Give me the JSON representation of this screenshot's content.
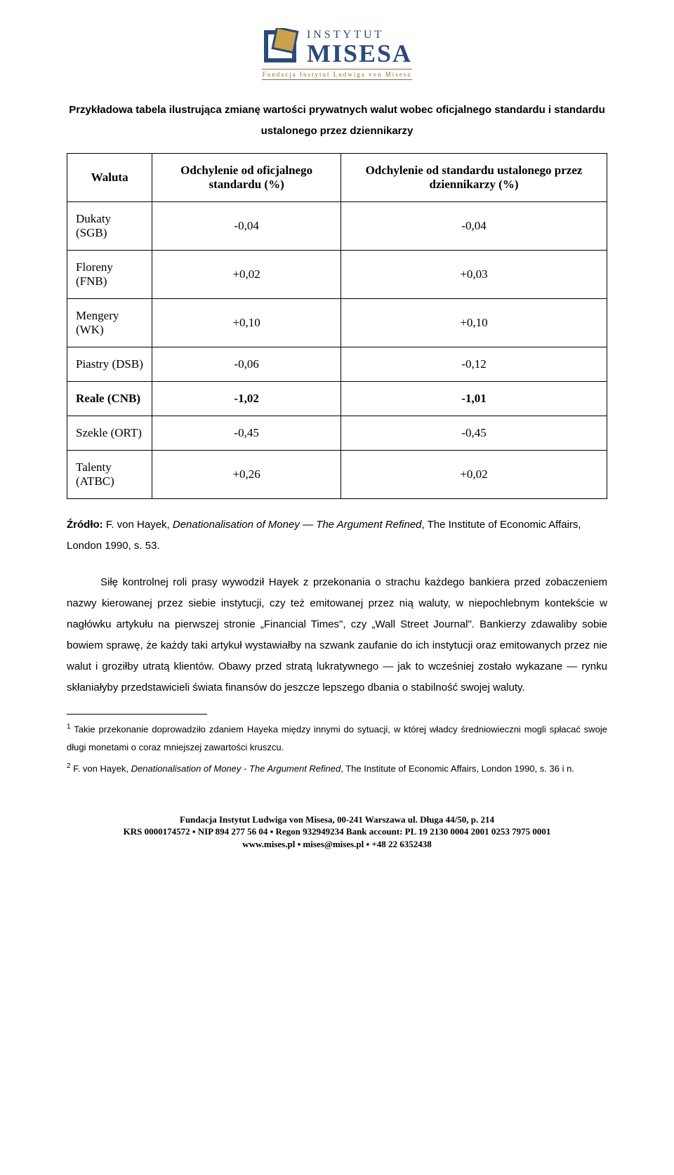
{
  "logo": {
    "line1": "INSTYTUT",
    "line2": "MISESA",
    "sub": "Fundacja Instytut Ludwiga von Misesa",
    "mark_color_outer": "#2a4a7a",
    "mark_color_inner": "#c9a24a"
  },
  "heading": "Przykładowa tabela ilustrująca zmianę wartości prywatnych walut wobec oficjalnego standardu i standardu ustalonego przez dziennikarzy",
  "table": {
    "columns": [
      "Waluta",
      "Odchylenie od oficjalnego standardu (%)",
      "Odchylenie od standardu ustalonego przez dziennikarzy (%)"
    ],
    "rows": [
      {
        "name": "Dukaty (SGB)",
        "v1": "-0,04",
        "v2": "-0,04",
        "bold": false
      },
      {
        "name": "Floreny (FNB)",
        "v1": "+0,02",
        "v2": "+0,03",
        "bold": false
      },
      {
        "name": "Mengery (WK)",
        "v1": "+0,10",
        "v2": "+0,10",
        "bold": false
      },
      {
        "name": "Piastry (DSB)",
        "v1": "-0,06",
        "v2": "-0,12",
        "bold": false
      },
      {
        "name": "Reale (CNB)",
        "v1": "-1,02",
        "v2": "-1,01",
        "bold": true
      },
      {
        "name": "Szekle (ORT)",
        "v1": "-0,45",
        "v2": "-0,45",
        "bold": false
      },
      {
        "name": "Talenty (ATBC)",
        "v1": "+0,26",
        "v2": "+0,02",
        "bold": false
      }
    ]
  },
  "source": {
    "label": "Źródło: ",
    "author": "F. von Hayek, ",
    "title": "Denationalisation of Money — The Argument Refined",
    "rest": ", The Institute of Economic Affairs, London 1990, s. 53."
  },
  "paragraph": "Siłę kontrolnej roli prasy wywodził Hayek z przekonania o strachu każdego bankiera przed zobaczeniem nazwy kierowanej przez siebie instytucji, czy też emitowanej przez nią waluty, w niepochlebnym kontekście w nagłówku artykułu na pierwszej stronie „Financial Times\", czy „Wall Street Journal\". Bankierzy zdawaliby sobie bowiem sprawę, że każdy taki artykuł wystawiałby na szwank zaufanie do ich instytucji oraz emitowanych przez nie walut i groziłby utratą klientów. Obawy przed stratą lukratywnego — jak to wcześniej zostało wykazane — rynku skłaniałyby przedstawicieli świata finansów do jeszcze lepszego dbania o stabilność swojej waluty.",
  "footnotes": [
    {
      "num": "1",
      "text": "Takie przekonanie doprowadziło zdaniem Hayeka między innymi do sytuacji, w której władcy średniowieczni mogli spłacać swoje długi monetami o coraz mniejszej zawartości kruszcu."
    },
    {
      "num": "2",
      "pre": "F. von Hayek, ",
      "ital": "Denationalisation of Money - The Argument Refined",
      "post": ", The Institute of Economic Affairs, London 1990, s. 36 i n."
    }
  ],
  "footer": {
    "l1": "Fundacja Instytut Ludwiga von Misesa, 00-241 Warszawa ul. Długa 44/50, p. 214",
    "l2": "KRS 0000174572 ▪ NIP 894 277 56 04 ▪ Regon 932949234 Bank account: PL 19 2130 0004 2001 0253 7975 0001",
    "l3": "www.mises.pl ▪ mises@mises.pl ▪ +48 22 6352438"
  }
}
